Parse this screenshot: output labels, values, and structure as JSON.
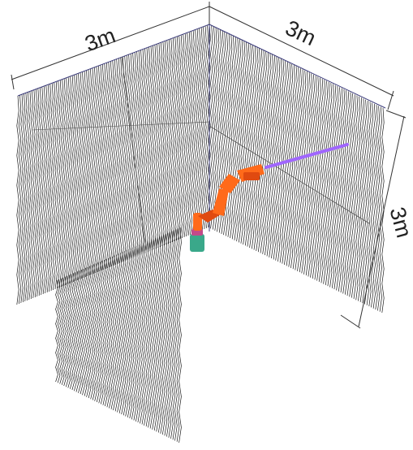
{
  "labels": {
    "width_top_left": "3m",
    "width_top_right": "3m",
    "height_right": "3m"
  },
  "colors": {
    "background": "#ffffff",
    "dimension_line": "#333333",
    "mesh_lines": "#1a1a1a",
    "wall_edge": "#3a3a7a",
    "robot_arm": "#ff6a1a",
    "robot_arm_dark": "#e04a10",
    "robot_base": "#3aa88a",
    "robot_base_band": "#c24a8a",
    "laser_beam": "#a066ff"
  },
  "icons": {
    "robot": "robot-arm-icon"
  }
}
